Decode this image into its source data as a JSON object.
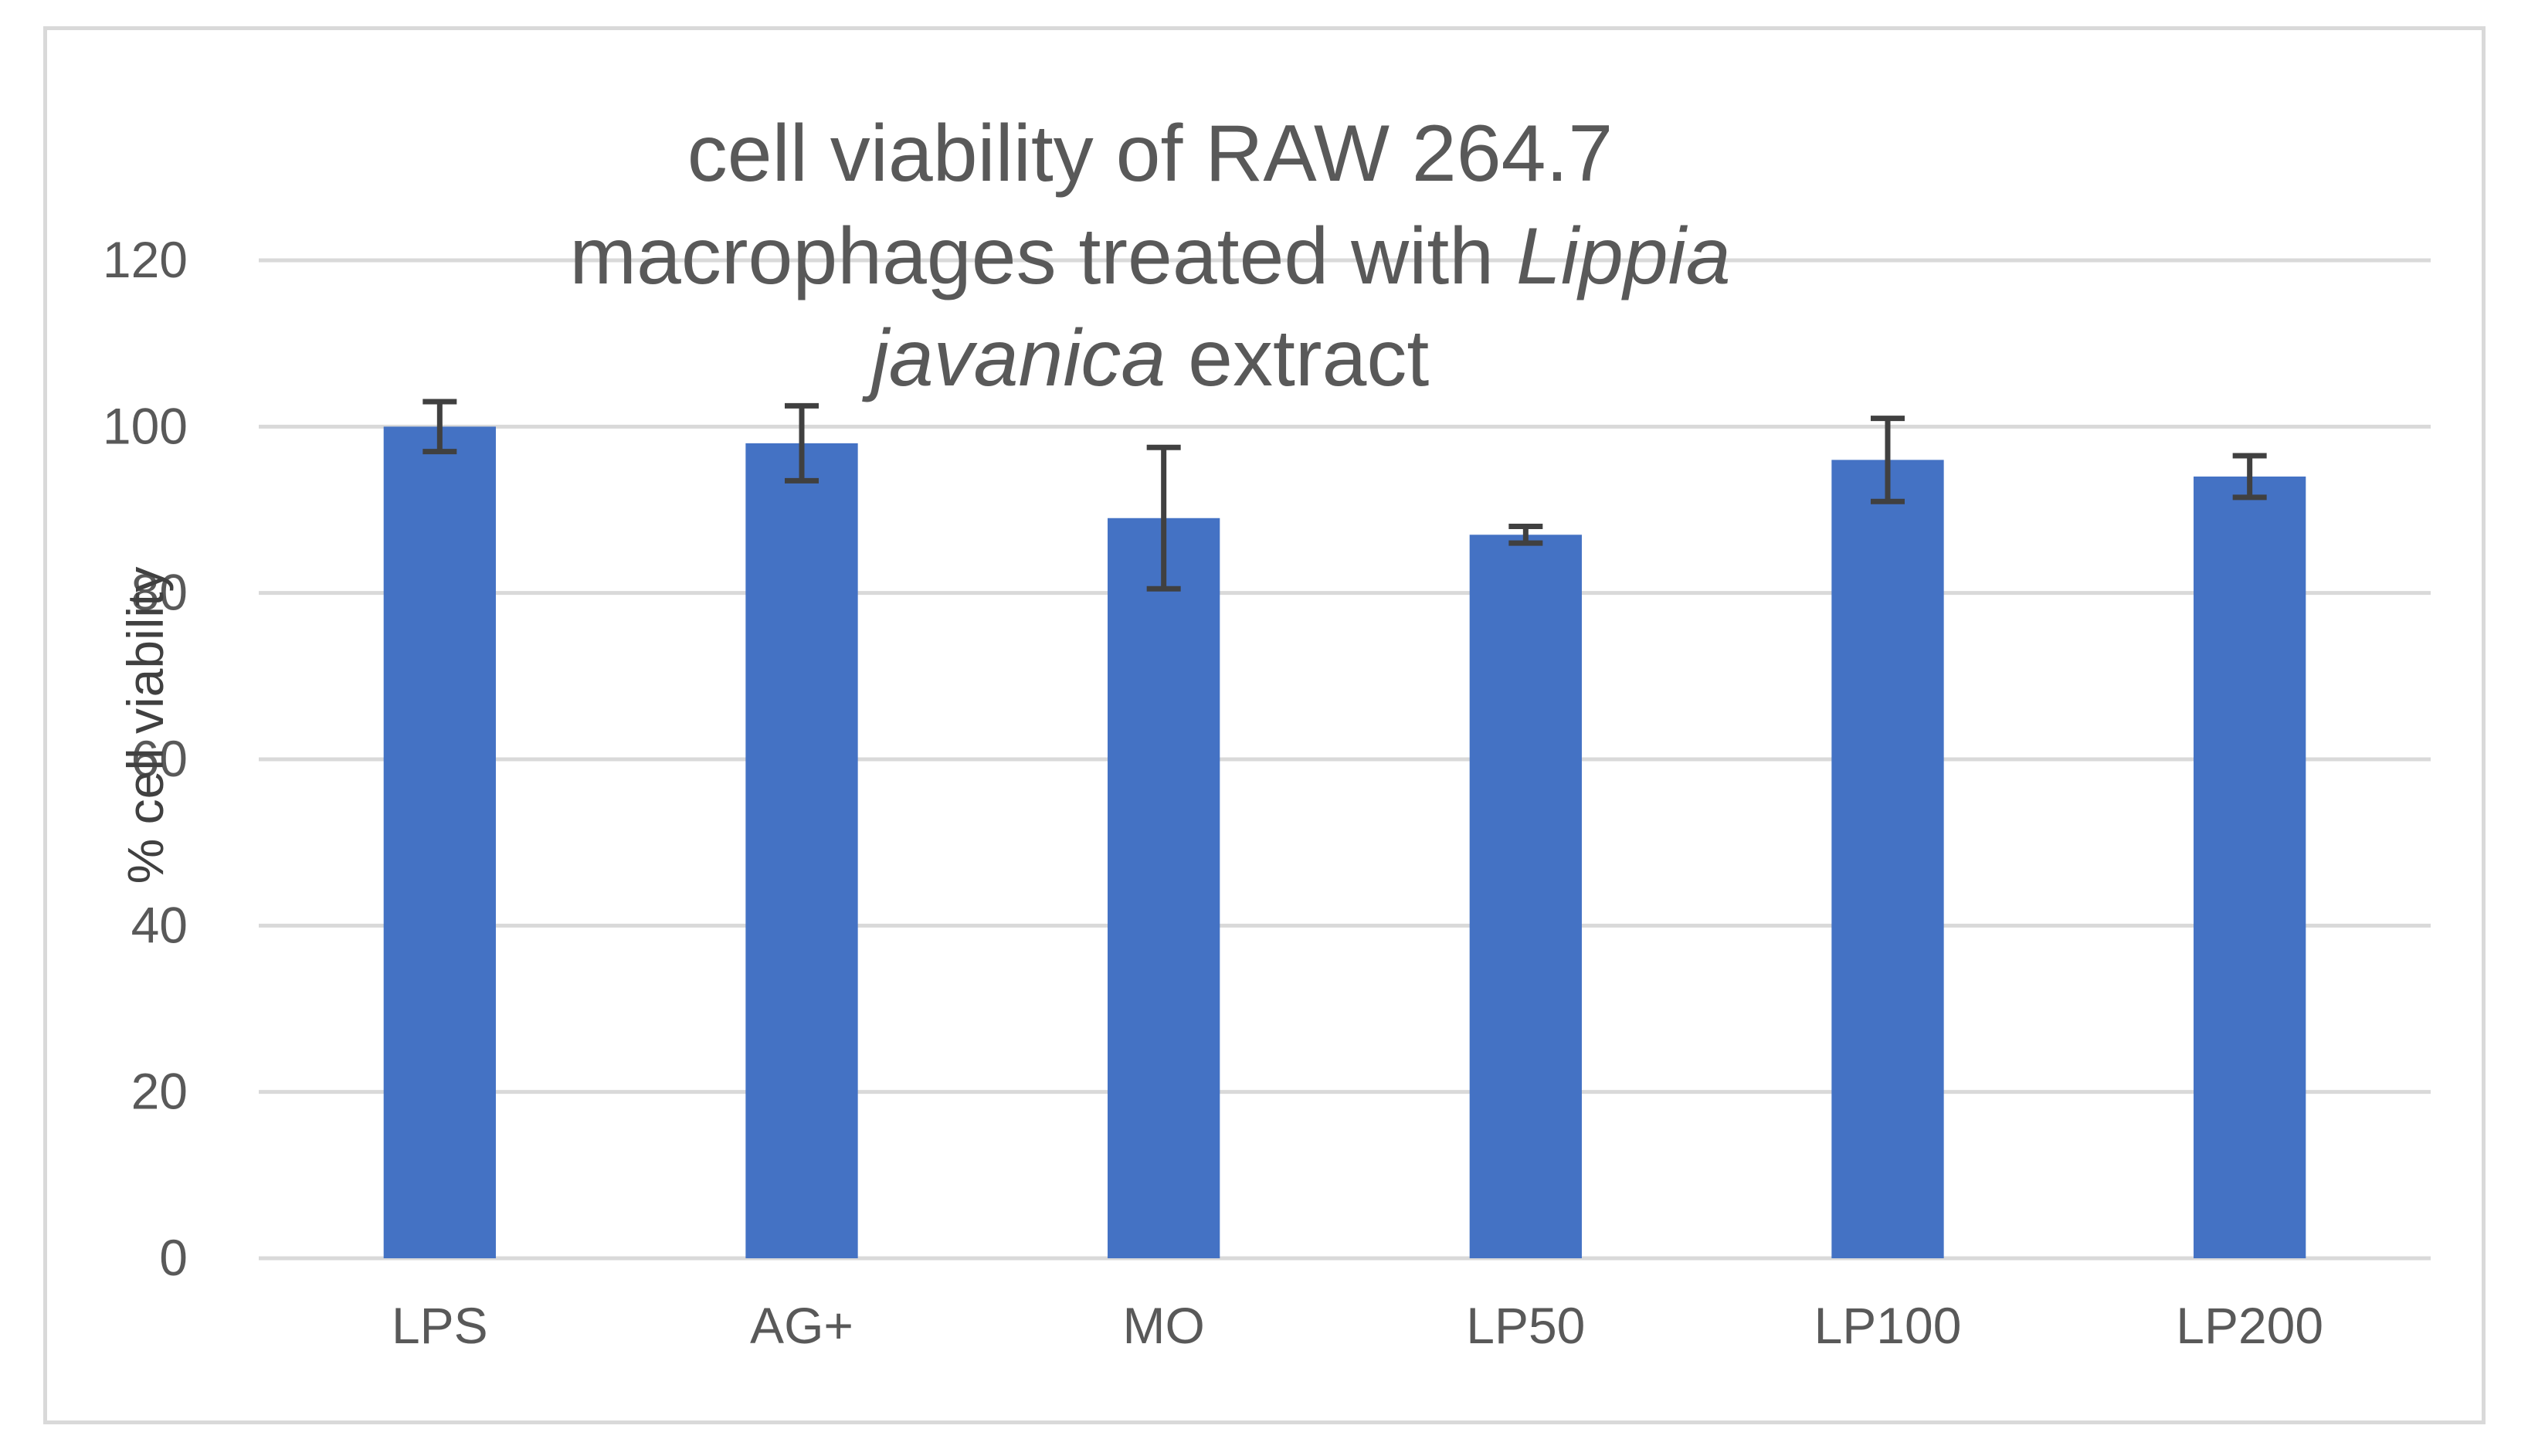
{
  "chart_data": {
    "type": "bar",
    "title": {
      "line1": "cell viability of RAW 264.7",
      "line2_normal": "macrophages treated with ",
      "line2_italic": "Lippia",
      "line3_italic": "javanica",
      "line3_normal": " extract"
    },
    "xlabel": "",
    "ylabel": "% cell viability",
    "ylim": [
      0,
      120
    ],
    "yticks": [
      0,
      20,
      40,
      60,
      80,
      100,
      120
    ],
    "grid": true,
    "legend": "none",
    "categories": [
      "LPS",
      "AG+",
      "MO",
      "LP50",
      "LP100",
      "LP200"
    ],
    "values": [
      100,
      98,
      89,
      87,
      96,
      94
    ],
    "errors": [
      3,
      4.5,
      8.5,
      1,
      5,
      2.5
    ],
    "colors": {
      "bar": "#4472c4",
      "error_bar": "#404040",
      "grid": "#d9d9d9"
    }
  }
}
